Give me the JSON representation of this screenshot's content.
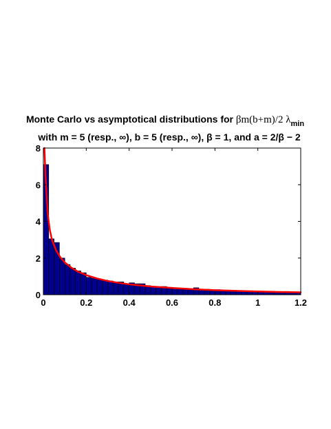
{
  "chart_data": {
    "type": "bar",
    "title_line1_text": "Monte Carlo vs asymptotical distributions for ",
    "title_line1_math": "βm(b+m)/2 λ",
    "title_line1_sub": "min",
    "title_line2": "with m = 5 (resp.,  ∞), b = 5 (resp., ∞), β = 1, and a = 2/β − 2",
    "xlabel": "",
    "ylabel": "",
    "xlim": [
      0,
      1.2
    ],
    "ylim": [
      0,
      8
    ],
    "x_ticks": [
      "0",
      "0.2",
      "0.4",
      "0.6",
      "0.8",
      "1",
      "1.2"
    ],
    "x_tick_values": [
      0,
      0.2,
      0.4,
      0.6,
      0.8,
      1.0,
      1.2
    ],
    "y_ticks": [
      "0",
      "2",
      "4",
      "6",
      "8"
    ],
    "y_tick_values": [
      0,
      2,
      4,
      6,
      8
    ],
    "grid": false,
    "histogram": {
      "bin_width": 0.025,
      "x_start": 0.0,
      "values": [
        7.1,
        3.05,
        2.85,
        2.0,
        1.65,
        1.45,
        1.3,
        1.2,
        0.95,
        0.9,
        0.85,
        0.8,
        0.75,
        0.7,
        0.7,
        0.6,
        0.65,
        0.6,
        0.6,
        0.5,
        0.45,
        0.42,
        0.45,
        0.4,
        0.38,
        0.35,
        0.35,
        0.3,
        0.38,
        0.28,
        0.3,
        0.25,
        0.28,
        0.25,
        0.22,
        0.22,
        0.2,
        0.2,
        0.18,
        0.18,
        0.18,
        0.15,
        0.15,
        0.15,
        0.12,
        0.18,
        0.15,
        0.12
      ]
    },
    "curve": {
      "type": "line",
      "x": [
        0.005,
        0.01,
        0.02,
        0.03,
        0.04,
        0.06,
        0.08,
        0.1,
        0.13,
        0.16,
        0.2,
        0.25,
        0.3,
        0.35,
        0.4,
        0.5,
        0.6,
        0.7,
        0.8,
        0.9,
        1.0,
        1.1,
        1.2
      ],
      "y": [
        8.0,
        6.5,
        4.45,
        3.55,
        3.0,
        2.4,
        2.03,
        1.76,
        1.48,
        1.27,
        1.07,
        0.89,
        0.75,
        0.65,
        0.57,
        0.45,
        0.37,
        0.3,
        0.25,
        0.21,
        0.18,
        0.15,
        0.13
      ]
    },
    "colors": {
      "bar_fill": "#00008c",
      "bar_edge": "#000000",
      "curve": "#ff0000",
      "axes": "#000000",
      "background": "#ffffff"
    }
  }
}
